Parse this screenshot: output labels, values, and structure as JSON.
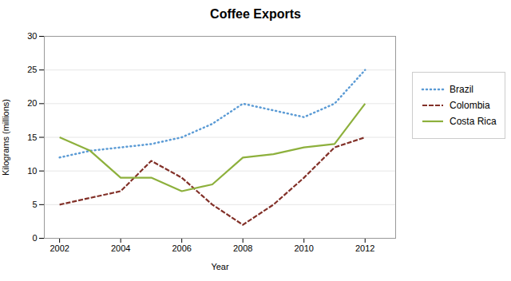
{
  "chart_data": {
    "type": "line",
    "title": "Coffee Exports",
    "xlabel": "Year",
    "ylabel": "Kilograms (millions)",
    "x": [
      2002,
      2003,
      2004,
      2005,
      2006,
      2007,
      2008,
      2009,
      2010,
      2011,
      2012
    ],
    "series": [
      {
        "name": "Brazil",
        "color": "#5B9BD5",
        "line_style": "dotted",
        "values": [
          12,
          13,
          13.5,
          14,
          15,
          17,
          20,
          19,
          18,
          20,
          25
        ]
      },
      {
        "name": "Colombia",
        "color": "#823028",
        "line_style": "dashed",
        "values": [
          5,
          6,
          7,
          11.5,
          9,
          5,
          2,
          5,
          9,
          13.5,
          15
        ]
      },
      {
        "name": "Costa Rica",
        "color": "#8DB03C",
        "line_style": "solid",
        "values": [
          15,
          13,
          9,
          9,
          7,
          8,
          12,
          12.5,
          13.5,
          14,
          20
        ]
      }
    ],
    "xlim": [
      2001.5,
      2013.0
    ],
    "xticks": [
      2002,
      2004,
      2006,
      2008,
      2010,
      2012
    ],
    "ylim": [
      0,
      30
    ],
    "yticks": [
      0,
      5,
      10,
      15,
      20,
      25,
      30
    ],
    "grid": "y",
    "legend": "right"
  }
}
